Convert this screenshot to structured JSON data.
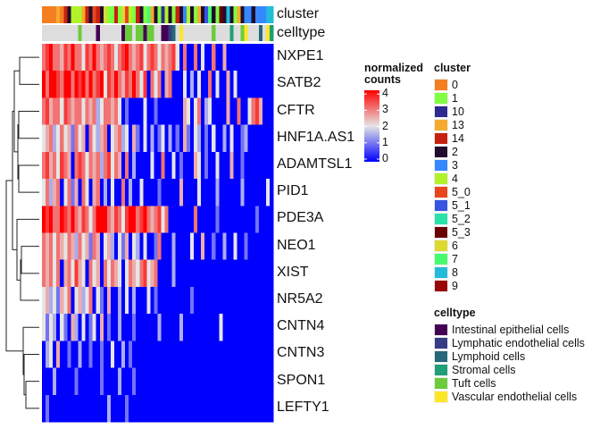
{
  "chart_data": {
    "type": "heatmap",
    "rows": [
      "NXPE1",
      "SATB2",
      "CFTR",
      "HNF1A.AS1",
      "ADAMTSL1",
      "PID1",
      "PDE3A",
      "NEO1",
      "XIST",
      "NR5A2",
      "CNTN4",
      "CNTN3",
      "SPON1",
      "LEFTY1"
    ],
    "values": [
      [
        3,
        3.5,
        4,
        3,
        3,
        2.5,
        3.5,
        3,
        4,
        3,
        3,
        2,
        3.5,
        3,
        4,
        3,
        2.5,
        3,
        3.5,
        3,
        2,
        3,
        3.5,
        4,
        3,
        2.5,
        3,
        3.5,
        2,
        3,
        3.5,
        3,
        2,
        3,
        2.5,
        3,
        3.5,
        2,
        0,
        3,
        0,
        0,
        3,
        0,
        2,
        0,
        0,
        3,
        0,
        0,
        2.5,
        0,
        0,
        0,
        0,
        0,
        0,
        0,
        0,
        0,
        0,
        0,
        0,
        0
      ],
      [
        4,
        3,
        4,
        4,
        3.5,
        3,
        4,
        4,
        3,
        4,
        3.5,
        4,
        3,
        4,
        3,
        3.5,
        4,
        2,
        3.5,
        3,
        4,
        3,
        2.5,
        3.5,
        3,
        4,
        3,
        2,
        3.5,
        0,
        3,
        2,
        3,
        0,
        2.5,
        3,
        0,
        0,
        0,
        2,
        0,
        1.5,
        0,
        2,
        0,
        0,
        3,
        0,
        2,
        0,
        0,
        2.5,
        0,
        2,
        0,
        0,
        0,
        0,
        0,
        0,
        0,
        0,
        0,
        0
      ],
      [
        3,
        3.5,
        2.5,
        3,
        3,
        2,
        3.5,
        3,
        2.5,
        3,
        3,
        2,
        3,
        2.5,
        3,
        1.5,
        2,
        3,
        3,
        2.5,
        3,
        2,
        0,
        1,
        0,
        0,
        0,
        0,
        2,
        0,
        0,
        1,
        0,
        0,
        0,
        0,
        0,
        0,
        0,
        2.5,
        2,
        0,
        2,
        3,
        0,
        1.5,
        2,
        0,
        0,
        0,
        0,
        2.5,
        0,
        0,
        3,
        0,
        0,
        2,
        3,
        3.5,
        2.5,
        0,
        0,
        0
      ],
      [
        2,
        2.5,
        3,
        1.5,
        2,
        3,
        2,
        2.5,
        1,
        3,
        2,
        2.5,
        0,
        3,
        2,
        1.5,
        2.5,
        3,
        0,
        2,
        2.5,
        3,
        1.5,
        2,
        0,
        2.5,
        1,
        0,
        2,
        0,
        1.5,
        0,
        1,
        2,
        0,
        1.5,
        0,
        1,
        0,
        2.5,
        1,
        0,
        2,
        1.5,
        0,
        1,
        0,
        2,
        0,
        0,
        1.5,
        0,
        2,
        0,
        0,
        1,
        1.5,
        0,
        0,
        0,
        0,
        0,
        0,
        0
      ],
      [
        3,
        3.5,
        2.5,
        3,
        2,
        3.5,
        3,
        2.5,
        0,
        3,
        3.5,
        3,
        2,
        3,
        2.5,
        3,
        1.5,
        3,
        3.5,
        2,
        3,
        2.5,
        0,
        3,
        0,
        1.5,
        0,
        0,
        0,
        0,
        2,
        0,
        0,
        3,
        0,
        0,
        2,
        0,
        1,
        0,
        0,
        0,
        2.5,
        2,
        0,
        1,
        0,
        0,
        2,
        0,
        0,
        0,
        2.5,
        0,
        0,
        1,
        0,
        0,
        0,
        0,
        0,
        0,
        0,
        0
      ],
      [
        2,
        3,
        1.5,
        2.5,
        3,
        0,
        2,
        3,
        1,
        2.5,
        0,
        3,
        2,
        0,
        2.5,
        3,
        0,
        1.5,
        0,
        2,
        0,
        0,
        3,
        0,
        1.5,
        0,
        0,
        2,
        0,
        0,
        0,
        0,
        1,
        0,
        0,
        0,
        0,
        0,
        2.5,
        0,
        0,
        0,
        0,
        2,
        0,
        0,
        0,
        0,
        1.5,
        0,
        0,
        0,
        0,
        0,
        0,
        1.5,
        0,
        0,
        0,
        0,
        0,
        0,
        2,
        0
      ],
      [
        4,
        3.5,
        4,
        3,
        3,
        4,
        3.5,
        3,
        4,
        3,
        2.5,
        3.5,
        3,
        2,
        3,
        4,
        4,
        4,
        3,
        2.5,
        3.5,
        3,
        2,
        3.5,
        4,
        4,
        3,
        3.5,
        4,
        3,
        2.5,
        3,
        3.5,
        2,
        3,
        0,
        0,
        0,
        0,
        0,
        0,
        0,
        3,
        0,
        0,
        0,
        0,
        0,
        1,
        0,
        0,
        0,
        0,
        0,
        0,
        0,
        0,
        0,
        0,
        1,
        0,
        0,
        0,
        0
      ],
      [
        3,
        2.5,
        3,
        2,
        3,
        2.5,
        2,
        3,
        2.5,
        1.5,
        3,
        2,
        2.5,
        1,
        3,
        2.5,
        0,
        2,
        2.5,
        1.5,
        0,
        2,
        1,
        2.5,
        0,
        2,
        1.5,
        0,
        2,
        0,
        0,
        1,
        3,
        0,
        0,
        0,
        1.5,
        0,
        0,
        0,
        0,
        2,
        0,
        0,
        2.5,
        0,
        0,
        1,
        0,
        0,
        1.5,
        0,
        0,
        2,
        0,
        0,
        1,
        0,
        0,
        0,
        0,
        0,
        0,
        0
      ],
      [
        3,
        2.5,
        3,
        2,
        3,
        0,
        2.5,
        3,
        2,
        3.5,
        2.5,
        2,
        0,
        3,
        2,
        2.5,
        0,
        3,
        2,
        3,
        2.5,
        2,
        0,
        2,
        3,
        2.5,
        2,
        3,
        3.5,
        2,
        2.5,
        3,
        0,
        0,
        0,
        0,
        1.5,
        0,
        0,
        0,
        0,
        0,
        0,
        0,
        0,
        0,
        0,
        0,
        0,
        0,
        0,
        0,
        0,
        0,
        0,
        0,
        0,
        0,
        0,
        0,
        0,
        0,
        0,
        0
      ],
      [
        2,
        2.5,
        1.5,
        2,
        1,
        2.5,
        2,
        3,
        0,
        2,
        2.5,
        1.5,
        2,
        3,
        0,
        2,
        1,
        0,
        2.5,
        0,
        0,
        1.5,
        0,
        2,
        0,
        1.5,
        0,
        0,
        0,
        2,
        0,
        1,
        0,
        0,
        0,
        0,
        0,
        0,
        0,
        0,
        0,
        1,
        0,
        0,
        0,
        0,
        0,
        0,
        0,
        0,
        0,
        0,
        0,
        0,
        0,
        0,
        0,
        0,
        0,
        0,
        0,
        0,
        0,
        0
      ],
      [
        2,
        1,
        2,
        1.5,
        0,
        2,
        1,
        0,
        2.5,
        1.5,
        0,
        2,
        0,
        1,
        2,
        0,
        2.5,
        0,
        1,
        0,
        0,
        1.5,
        0,
        0,
        0,
        1,
        0,
        0,
        0,
        0,
        0,
        0,
        1.5,
        0,
        0,
        0,
        0,
        0,
        1.5,
        0,
        0,
        0,
        0,
        0,
        0,
        0,
        0,
        0,
        0,
        2,
        0,
        0,
        0,
        0,
        0,
        0,
        0,
        0,
        0,
        0,
        0,
        0,
        0,
        0
      ],
      [
        0,
        1.5,
        2,
        0,
        2.5,
        0,
        0,
        1,
        0,
        0,
        1.5,
        0,
        0,
        1,
        0,
        0,
        1,
        0,
        0,
        2,
        0,
        0,
        1.5,
        0,
        1,
        0,
        0,
        0,
        0,
        0,
        0,
        0,
        0,
        0,
        0,
        0,
        0,
        0,
        0,
        0,
        0,
        0,
        0,
        0,
        0,
        0,
        0,
        0,
        0,
        0,
        0,
        0,
        0,
        0,
        0,
        0,
        0,
        0,
        0,
        0,
        0,
        0,
        0,
        0
      ],
      [
        0,
        0,
        0,
        1.5,
        0,
        0,
        0,
        0,
        0,
        1,
        0,
        0,
        0,
        0,
        0,
        0,
        1,
        0,
        0,
        0,
        0,
        1.5,
        0,
        0,
        0,
        1,
        0,
        0,
        0,
        0,
        0,
        0,
        0,
        0,
        0,
        0,
        0,
        0,
        0,
        0,
        0,
        0,
        0,
        0,
        0,
        0,
        0,
        0,
        0,
        0,
        0,
        0,
        0,
        0,
        0,
        0,
        0,
        0,
        0,
        0,
        0,
        0,
        0,
        0
      ],
      [
        0,
        1,
        0,
        0,
        0,
        0,
        0,
        0,
        0,
        0,
        0,
        0,
        0,
        0,
        0,
        0,
        0,
        0,
        1.5,
        0,
        0,
        0,
        0,
        1,
        0,
        0,
        0,
        0,
        0,
        0,
        0,
        0,
        0,
        0,
        0,
        0,
        0,
        0,
        0,
        0,
        0,
        0,
        0,
        0,
        0,
        0,
        0,
        0,
        0,
        0,
        0,
        0,
        0,
        0,
        0,
        0,
        0,
        0,
        0,
        0,
        0,
        0,
        0,
        0
      ]
    ],
    "color_scale": {
      "title": "normalized counts",
      "min": 0,
      "max": 4,
      "ticks": [
        "0",
        "1",
        "2",
        "3",
        "4"
      ],
      "low": "#0000FF",
      "mid": "#E5E5E5",
      "high": "#FF0000"
    },
    "row_dendrogram": true,
    "annotations": {
      "cluster": {
        "label": "cluster",
        "values": [
          "0",
          "0",
          "0",
          "0",
          "13",
          "0",
          "14",
          "2",
          "4",
          "4",
          "4",
          "13",
          "14",
          "2",
          "5_0",
          "14",
          "2",
          "6",
          "1",
          "1",
          "14",
          "1",
          "6",
          "5_0",
          "4",
          "1",
          "14",
          "2",
          "1",
          "7",
          "13",
          "2",
          "1",
          "10",
          "4",
          "2",
          "1",
          "14",
          "2",
          "3",
          "4",
          "2",
          "1",
          "13",
          "2",
          "5_1",
          "7",
          "2",
          "1",
          "5_3",
          "2",
          "8",
          "2",
          "1",
          "13",
          "2",
          "3",
          "3",
          "2",
          "3",
          "3",
          "3",
          "8",
          "8"
        ],
        "legend": [
          {
            "label": "0",
            "color": "#F57F20"
          },
          {
            "label": "1",
            "color": "#7FFF3F"
          },
          {
            "label": "10",
            "color": "#2E2B90"
          },
          {
            "label": "13",
            "color": "#F5AA2F"
          },
          {
            "label": "14",
            "color": "#C8200E"
          },
          {
            "label": "2",
            "color": "#200D2E"
          },
          {
            "label": "3",
            "color": "#3688FF"
          },
          {
            "label": "4",
            "color": "#B2F22A"
          },
          {
            "label": "5_0",
            "color": "#E8461C"
          },
          {
            "label": "5_1",
            "color": "#3755E3"
          },
          {
            "label": "5_2",
            "color": "#28E2A8"
          },
          {
            "label": "5_3",
            "color": "#690003"
          },
          {
            "label": "6",
            "color": "#DDD92F"
          },
          {
            "label": "7",
            "color": "#46FA6F"
          },
          {
            "label": "8",
            "color": "#23BBDA"
          },
          {
            "label": "9",
            "color": "#9A0606"
          }
        ]
      },
      "celltype": {
        "label": "celltype",
        "na_color": "#DDDDDD",
        "values": [
          null,
          null,
          null,
          null,
          null,
          null,
          null,
          null,
          null,
          null,
          "Tuft cells",
          null,
          null,
          null,
          null,
          "Intestinal epithelial cells",
          null,
          null,
          null,
          null,
          null,
          null,
          "Intestinal epithelial cells",
          "Tuft cells",
          "Tuft cells",
          null,
          "Tuft cells",
          "Tuft cells",
          "Intestinal epithelial cells",
          "Tuft cells",
          "Tuft cells",
          null,
          null,
          "Intestinal epithelial cells",
          "Intestinal epithelial cells",
          "Lymphatic endothelial cells",
          "Lymphoid cells",
          null,
          "Vascular endothelial cells",
          null,
          null,
          null,
          null,
          null,
          null,
          null,
          null,
          "Tuft cells",
          null,
          null,
          null,
          null,
          "Stromal cells",
          null,
          null,
          "Tuft cells",
          "Vascular endothelial cells",
          null,
          null,
          null,
          "Lymphoid cells",
          null,
          "Vascular endothelial cells",
          "Stromal cells"
        ],
        "legend": [
          {
            "label": "Intestinal epithelial cells",
            "color": "#440154"
          },
          {
            "label": "Lymphatic endothelial cells",
            "color": "#363C85"
          },
          {
            "label": "Lymphoid cells",
            "color": "#26677A"
          },
          {
            "label": "Stromal cells",
            "color": "#1F9E78"
          },
          {
            "label": "Tuft cells",
            "color": "#6ACC3C"
          },
          {
            "label": "Vascular endothelial cells",
            "color": "#FDE725"
          }
        ]
      }
    }
  }
}
